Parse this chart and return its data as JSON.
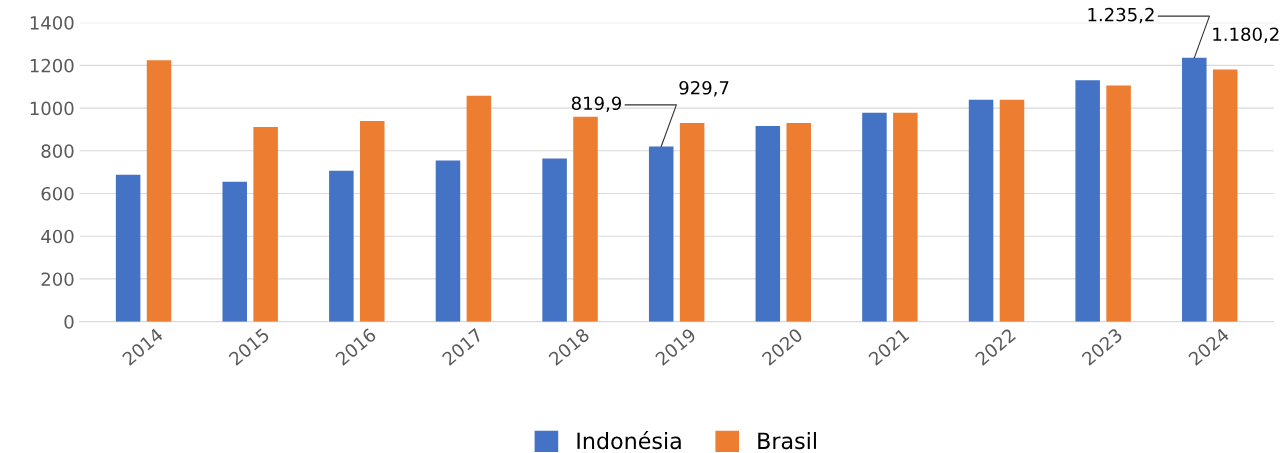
{
  "chart_data": {
    "type": "bar",
    "categories": [
      "2014",
      "2015",
      "2016",
      "2017",
      "2018",
      "2019",
      "2020",
      "2021",
      "2022",
      "2023",
      "2024"
    ],
    "series": [
      {
        "name": "Indonésia",
        "color": "#4472c4",
        "values": [
          688,
          655,
          707,
          755,
          764,
          819.9,
          916,
          978,
          1039,
          1130,
          1235.2
        ],
        "value_labels": [
          null,
          null,
          null,
          null,
          null,
          "819,9",
          null,
          null,
          null,
          null,
          "1.235,2"
        ]
      },
      {
        "name": "Brasil",
        "color": "#ed7d31",
        "values": [
          1224,
          911,
          940,
          1058,
          959,
          929.7,
          930,
          978,
          1039,
          1106,
          1180.2
        ],
        "value_labels": [
          null,
          null,
          null,
          null,
          null,
          "929,7",
          null,
          null,
          null,
          null,
          "1.180,2"
        ]
      }
    ],
    "ylim": [
      0,
      1400
    ],
    "yticks": [
      0,
      200,
      400,
      600,
      800,
      1000,
      1200,
      1400
    ],
    "grid": "y",
    "legend": "bottom"
  }
}
